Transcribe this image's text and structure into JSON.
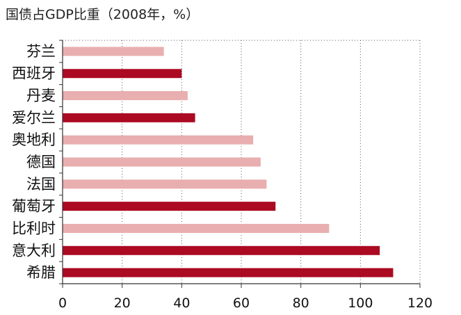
{
  "chart_data": {
    "type": "bar",
    "orientation": "horizontal",
    "title": "国债占GDP比重（2008年，%）",
    "xlabel": "",
    "ylabel": "",
    "xlim": [
      0,
      120
    ],
    "xticks": [
      0,
      20,
      40,
      60,
      80,
      100,
      120
    ],
    "grid": true,
    "categories": [
      "芬兰",
      "西班牙",
      "丹麦",
      "爱尔兰",
      "奥地利",
      "德国",
      "法国",
      "葡萄牙",
      "比利时",
      "意大利",
      "希腊"
    ],
    "values": [
      34,
      40,
      42,
      44.5,
      64,
      66.5,
      68.5,
      71.5,
      89.5,
      106.5,
      111
    ],
    "highlight": [
      false,
      true,
      false,
      true,
      false,
      false,
      false,
      true,
      false,
      true,
      true
    ],
    "colors": {
      "normal": "#e9aeaf",
      "highlight": "#ab0a22"
    }
  }
}
